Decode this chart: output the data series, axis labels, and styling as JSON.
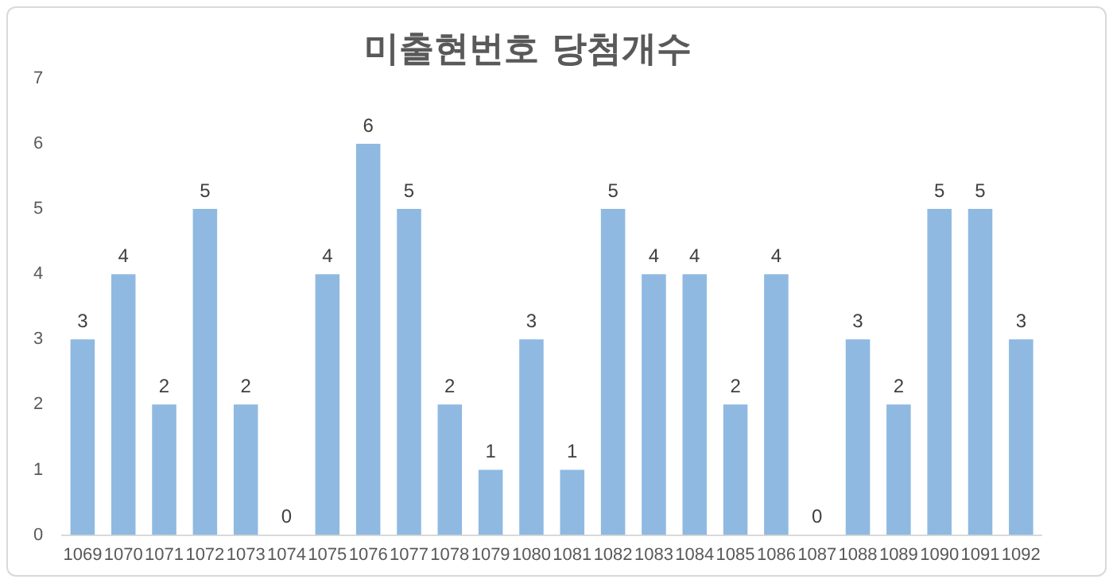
{
  "chart_data": {
    "type": "bar",
    "title": "미출현번호 당첨개수",
    "categories": [
      "1069",
      "1070",
      "1071",
      "1072",
      "1073",
      "1074",
      "1075",
      "1076",
      "1077",
      "1078",
      "1079",
      "1080",
      "1081",
      "1082",
      "1083",
      "1084",
      "1085",
      "1086",
      "1087",
      "1088",
      "1089",
      "1090",
      "1091",
      "1092"
    ],
    "values": [
      3,
      4,
      2,
      5,
      2,
      0,
      4,
      6,
      5,
      2,
      1,
      3,
      1,
      5,
      4,
      4,
      2,
      4,
      0,
      3,
      2,
      5,
      5,
      3
    ],
    "color": "#8fb9e1",
    "ylim": [
      0,
      7
    ],
    "yticks": [
      0,
      1,
      2,
      3,
      4,
      5,
      6,
      7
    ],
    "grid": false,
    "data_labels": true
  }
}
